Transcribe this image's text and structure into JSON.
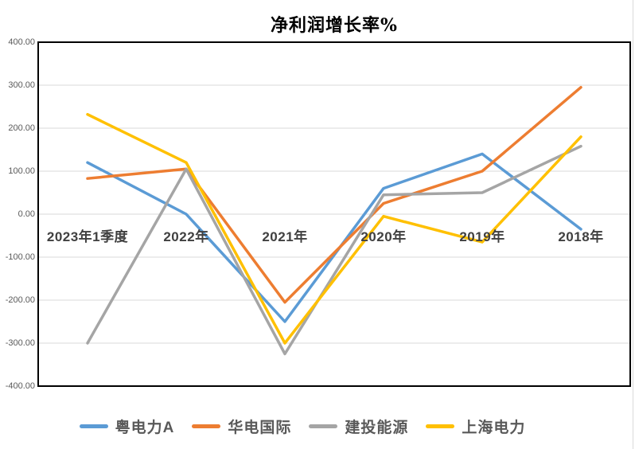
{
  "chart_data": {
    "type": "line",
    "title": "净利润增长率%",
    "categories": [
      "2023年1季度",
      "2022年",
      "2021年",
      "2020年",
      "2019年",
      "2018年"
    ],
    "series": [
      {
        "name": "粤电力A",
        "color": "#5B9BD5",
        "values": [
          120,
          0,
          -250,
          60,
          140,
          -35
        ]
      },
      {
        "name": "华电国际",
        "color": "#ED7D31",
        "values": [
          83,
          105,
          -205,
          25,
          100,
          295
        ]
      },
      {
        "name": "建投能源",
        "color": "#A5A5A5",
        "values": [
          -300,
          105,
          -325,
          45,
          50,
          158
        ]
      },
      {
        "name": "上海电力",
        "color": "#FFC000",
        "values": [
          232,
          120,
          -300,
          -5,
          -65,
          180
        ]
      }
    ],
    "ylim": [
      -400,
      400
    ],
    "y_tick_step": 100,
    "y_tick_labels": [
      "400.00",
      "300.00",
      "200.00",
      "100.00",
      "0.00",
      "-100.00",
      "-200.00",
      "-300.00",
      "-400.00"
    ],
    "grid": true,
    "gridline_color": "#D9D9D9",
    "plot_border_color": "#000000",
    "axis_text_color": "#595959",
    "category_text_color": "#404040",
    "legend_position": "bottom",
    "line_width": 3.5
  }
}
